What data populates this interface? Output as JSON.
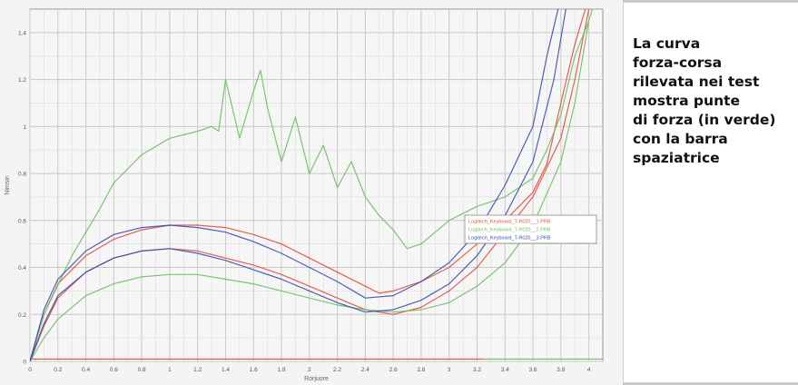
{
  "caption": {
    "lines": [
      "La curva",
      "forza-corsa",
      "rilevata nei test",
      "mostra punte",
      "di forza (in verde)",
      "con la barra",
      "spaziatrice"
    ]
  },
  "chart_data": {
    "type": "line",
    "title": "",
    "xlabel": "Rorjuore",
    "ylabel": "Nimsin",
    "xlim": [
      0,
      4.1
    ],
    "ylim": [
      0,
      1.5
    ],
    "x_ticks": [
      0,
      0.2,
      0.4,
      0.6,
      0.8,
      1,
      1.2,
      1.4,
      1.6,
      1.8,
      2,
      2.2,
      2.4,
      2.6,
      2.8,
      3,
      3.2,
      3.4,
      3.6,
      3.8,
      4
    ],
    "x_tick_labels": [
      "0",
      "0.2",
      "0.4",
      "0.6",
      "0.8",
      "1",
      "1.2",
      "1.4",
      "1.6",
      "1.8",
      "2",
      "2.2",
      "2.4",
      "2.6",
      "2.8",
      "3",
      "3.2",
      "3.4",
      "3.6",
      "3.8",
      "4"
    ],
    "y_ticks": [
      0,
      0.2,
      0.4,
      0.6,
      0.8,
      1,
      1.2,
      1.4
    ],
    "y_tick_labels": [
      "0",
      "0.2",
      "0.4",
      "0.6",
      "0.8",
      "1",
      "1.2",
      "1.4"
    ],
    "grid": true,
    "legend_position": "right",
    "colors": {
      "red": "#e0503c",
      "green": "#6fbf63",
      "blue": "#3a4fb0",
      "background": "#f4f4f4",
      "grid": "#c8c8c8"
    },
    "series": [
      {
        "name": "Logitech_Keyboard_T-R020__1.PRB",
        "color": "#e0503c",
        "x": [
          0,
          0.1,
          0.2,
          0.4,
          0.6,
          0.8,
          1.0,
          1.2,
          1.4,
          1.6,
          1.8,
          2.0,
          2.2,
          2.4,
          2.5,
          2.6,
          2.8,
          3.0,
          3.2,
          3.4,
          3.6,
          3.7,
          3.8,
          3.9,
          4.0
        ],
        "y": [
          0,
          0.2,
          0.33,
          0.45,
          0.52,
          0.56,
          0.58,
          0.58,
          0.57,
          0.54,
          0.5,
          0.44,
          0.38,
          0.32,
          0.29,
          0.3,
          0.34,
          0.4,
          0.5,
          0.6,
          0.72,
          0.84,
          1.1,
          1.35,
          1.55
        ]
      },
      {
        "name": "Logitech_Keyboard_T-R020__1.PRB",
        "color": "#e0503c",
        "x": [
          0,
          0.1,
          0.2,
          0.4,
          0.6,
          0.8,
          1.0,
          1.2,
          1.4,
          1.6,
          1.8,
          2.0,
          2.2,
          2.4,
          2.6,
          2.8,
          3.0,
          3.2,
          3.4,
          3.6,
          3.8,
          3.9,
          4.0
        ],
        "y": [
          0,
          0.15,
          0.27,
          0.38,
          0.44,
          0.47,
          0.48,
          0.47,
          0.44,
          0.41,
          0.37,
          0.32,
          0.27,
          0.22,
          0.2,
          0.23,
          0.3,
          0.4,
          0.55,
          0.7,
          0.95,
          1.2,
          1.5
        ]
      },
      {
        "name": "Logitech_Keyboard_T-R020__2.PRB",
        "color": "#6fbf63",
        "x": [
          0,
          0.1,
          0.3,
          0.5,
          0.6,
          0.8,
          1.0,
          1.2,
          1.3,
          1.35,
          1.4,
          1.5,
          1.6,
          1.65,
          1.7,
          1.8,
          1.9,
          2.0,
          2.1,
          2.2,
          2.3,
          2.4,
          2.5,
          2.6,
          2.7,
          2.8,
          2.9,
          3.0,
          3.2,
          3.4,
          3.6,
          3.7,
          3.8,
          3.9,
          4.0,
          4.05
        ],
        "y": [
          0,
          0.2,
          0.45,
          0.65,
          0.76,
          0.88,
          0.95,
          0.98,
          1.0,
          0.98,
          1.2,
          0.95,
          1.15,
          1.24,
          1.08,
          0.85,
          1.04,
          0.8,
          0.92,
          0.74,
          0.85,
          0.7,
          0.62,
          0.56,
          0.48,
          0.5,
          0.55,
          0.6,
          0.66,
          0.7,
          0.78,
          0.9,
          1.05,
          1.3,
          1.45,
          1.55
        ]
      },
      {
        "name": "Logitech_Keyboard_T-R020__2.PRB",
        "color": "#6fbf63",
        "x": [
          0,
          0.1,
          0.2,
          0.4,
          0.6,
          0.8,
          1.0,
          1.2,
          1.4,
          1.6,
          1.8,
          2.0,
          2.2,
          2.4,
          2.6,
          2.8,
          3.0,
          3.2,
          3.4,
          3.6,
          3.8,
          3.9,
          4.0
        ],
        "y": [
          0,
          0.1,
          0.18,
          0.28,
          0.33,
          0.36,
          0.37,
          0.37,
          0.35,
          0.33,
          0.3,
          0.27,
          0.24,
          0.22,
          0.21,
          0.22,
          0.25,
          0.32,
          0.42,
          0.58,
          0.85,
          1.1,
          1.45
        ]
      },
      {
        "name": "Logitech_Keyboard_T-R020__3.PRB",
        "color": "#3a4fb0",
        "x": [
          0,
          0.1,
          0.2,
          0.4,
          0.6,
          0.8,
          1.0,
          1.2,
          1.4,
          1.6,
          1.8,
          2.0,
          2.2,
          2.4,
          2.6,
          2.8,
          3.0,
          3.2,
          3.4,
          3.6,
          3.7,
          3.8
        ],
        "y": [
          0,
          0.22,
          0.35,
          0.47,
          0.54,
          0.57,
          0.58,
          0.57,
          0.55,
          0.51,
          0.46,
          0.4,
          0.34,
          0.27,
          0.28,
          0.34,
          0.42,
          0.55,
          0.75,
          1.0,
          1.3,
          1.55
        ]
      },
      {
        "name": "Logitech_Keyboard_T-R020__3.PRB",
        "color": "#3a4fb0",
        "x": [
          0,
          0.1,
          0.2,
          0.4,
          0.6,
          0.8,
          1.0,
          1.2,
          1.4,
          1.6,
          1.8,
          2.0,
          2.2,
          2.4,
          2.6,
          2.8,
          3.0,
          3.2,
          3.4,
          3.6,
          3.75,
          3.85
        ],
        "y": [
          0,
          0.16,
          0.28,
          0.38,
          0.44,
          0.47,
          0.48,
          0.46,
          0.43,
          0.39,
          0.35,
          0.3,
          0.25,
          0.21,
          0.22,
          0.26,
          0.33,
          0.45,
          0.62,
          0.85,
          1.2,
          1.55
        ]
      }
    ],
    "legend": [
      {
        "label": "Logitech_Keyboard_T-R020__1.PRB",
        "color": "#e0503c"
      },
      {
        "label": "Logitech_Keyboard_T-R020__2.PRB",
        "color": "#6fbf63"
      },
      {
        "label": "Logitech_Keyboard_T-R020__3.PRB",
        "color": "#3a4fb0"
      }
    ]
  }
}
